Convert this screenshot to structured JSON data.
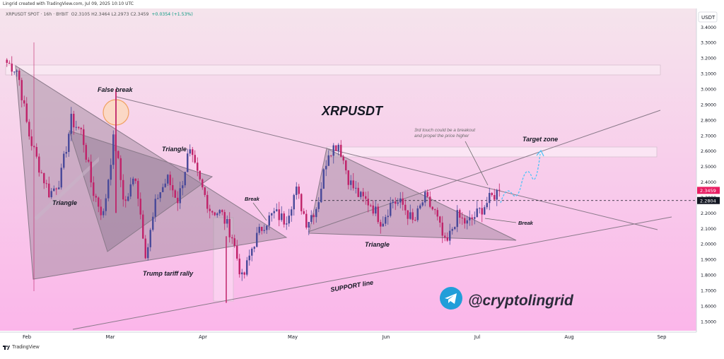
{
  "header": {
    "created_by": "Lingrid created with TradingView.com, Jul 09, 2025 10:10 UTC",
    "symbol_line": "XRPUSDT SPOT · 16h · BYBIT",
    "ohlc": "O2.3105 H2.3464 L2.2973 C2.3459",
    "change": "+0.0354 (+1.53%)"
  },
  "footer": {
    "brand": "TradingView"
  },
  "colors": {
    "background_top": "#f5e4ec",
    "background_bottom": "#fbb6ea",
    "up_candle": "#4a4a9a",
    "down_candle": "#c0246a",
    "shape_fill": "#b8a0b8",
    "shape_line": "#8a7a8a",
    "projection": "#4fc3f7",
    "price_label": "#e91e63",
    "level_label": "#131722"
  },
  "chart_data": {
    "type": "candlestick",
    "title": "XRPUSDT",
    "x_ticks": [
      "Feb",
      "Mar",
      "Apr",
      "May",
      "Jun",
      "Jul",
      "Aug",
      "Sep"
    ],
    "y_ticks": [
      1.5,
      1.6,
      1.7,
      1.8,
      1.9,
      2.0,
      2.1,
      2.2,
      2.3,
      2.4,
      2.5,
      2.6,
      2.7,
      2.8,
      2.9,
      3.0,
      3.1,
      3.2,
      3.3,
      3.4
    ],
    "y_tick_labels": [
      "1.5000",
      "1.6000",
      "1.7000",
      "1.8000",
      "1.9000",
      "2.0000",
      "2.1000",
      "2.2000",
      "2.3000",
      "2.4000",
      "2.5000",
      "2.6000",
      "2.7000",
      "2.8000",
      "2.9000",
      "3.0000",
      "3.1000",
      "3.2000",
      "3.3000",
      "3.4000"
    ],
    "ylim": [
      1.44,
      3.52
    ],
    "currency_label": "USDT",
    "current_price": 2.3459,
    "current_price_label": "2.3459",
    "level": 2.2804,
    "level_label": "2.2804",
    "price_path": [
      3.17,
      3.12,
      2.72,
      2.5,
      2.32,
      2.42,
      2.8,
      2.72,
      2.35,
      2.18,
      2.7,
      2.25,
      2.45,
      1.92,
      2.3,
      2.42,
      2.28,
      2.6,
      2.4,
      2.22,
      2.2,
      2.06,
      1.76,
      2.0,
      2.13,
      2.2,
      2.15,
      2.35,
      2.14,
      2.25,
      2.6,
      2.65,
      2.4,
      2.3,
      2.26,
      2.14,
      2.28,
      2.25,
      2.13,
      2.3,
      2.2,
      1.98,
      2.18,
      2.13,
      2.2,
      2.28,
      2.35
    ],
    "annotations": {
      "false_break": "False break",
      "triangle_1": "Triangle",
      "triangle_2": "Triangle",
      "triangle_3": "Triangle",
      "break_1": "Break",
      "break_2": "Break",
      "trump": "Trump tariff rally",
      "support": "SUPPORT line",
      "target": "Target zone",
      "note_line1": "3rd touch could be a breakout",
      "note_line2": "and propel the price higher",
      "handle": "@cryptolingrid"
    }
  }
}
